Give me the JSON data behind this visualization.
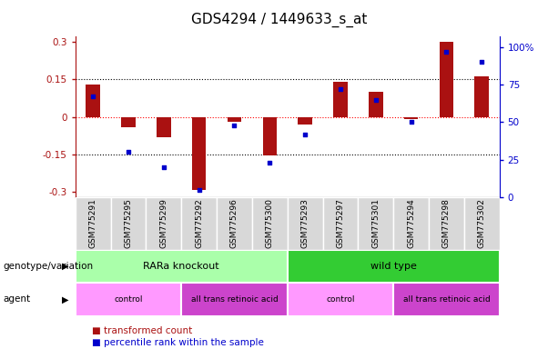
{
  "title": "GDS4294 / 1449633_s_at",
  "samples": [
    "GSM775291",
    "GSM775295",
    "GSM775299",
    "GSM775292",
    "GSM775296",
    "GSM775300",
    "GSM775293",
    "GSM775297",
    "GSM775301",
    "GSM775294",
    "GSM775298",
    "GSM775302"
  ],
  "bar_values": [
    0.13,
    -0.04,
    -0.08,
    -0.29,
    -0.02,
    -0.155,
    -0.03,
    0.14,
    0.1,
    -0.01,
    0.3,
    0.16
  ],
  "dot_values": [
    67,
    30,
    20,
    5,
    48,
    23,
    42,
    72,
    65,
    50,
    97,
    90
  ],
  "bar_color": "#aa1111",
  "dot_color": "#0000cc",
  "ylim_left": [
    -0.32,
    0.32
  ],
  "ylim_right": [
    0,
    107
  ],
  "yticks_left": [
    -0.3,
    -0.15,
    0.0,
    0.15,
    0.3
  ],
  "ytick_labels_left": [
    "-0.3",
    "-0.15",
    "0",
    "0.15",
    "0.3"
  ],
  "yticks_right": [
    0,
    25,
    50,
    75,
    100
  ],
  "ytick_labels_right": [
    "0",
    "25",
    "50",
    "75",
    "100%"
  ],
  "hlines": [
    -0.15,
    0.0,
    0.15
  ],
  "hline_colors": [
    "black",
    "red",
    "black"
  ],
  "hline_styles": [
    "dotted",
    "dotted",
    "dotted"
  ],
  "genotype_groups": [
    {
      "label": "RARa knockout",
      "start": 0,
      "end": 6,
      "color": "#aaffaa"
    },
    {
      "label": "wild type",
      "start": 6,
      "end": 12,
      "color": "#33cc33"
    }
  ],
  "agent_groups": [
    {
      "label": "control",
      "start": 0,
      "end": 3,
      "color": "#ff99ff"
    },
    {
      "label": "all trans retinoic acid",
      "start": 3,
      "end": 6,
      "color": "#cc44cc"
    },
    {
      "label": "control",
      "start": 6,
      "end": 9,
      "color": "#ff99ff"
    },
    {
      "label": "all trans retinoic acid",
      "start": 9,
      "end": 12,
      "color": "#cc44cc"
    }
  ],
  "legend_items": [
    {
      "label": "transformed count",
      "color": "#aa1111"
    },
    {
      "label": "percentile rank within the sample",
      "color": "#0000cc"
    }
  ],
  "background_color": "#ffffff",
  "tick_label_fontsize": 7.5,
  "title_fontsize": 11,
  "bar_width": 0.4
}
